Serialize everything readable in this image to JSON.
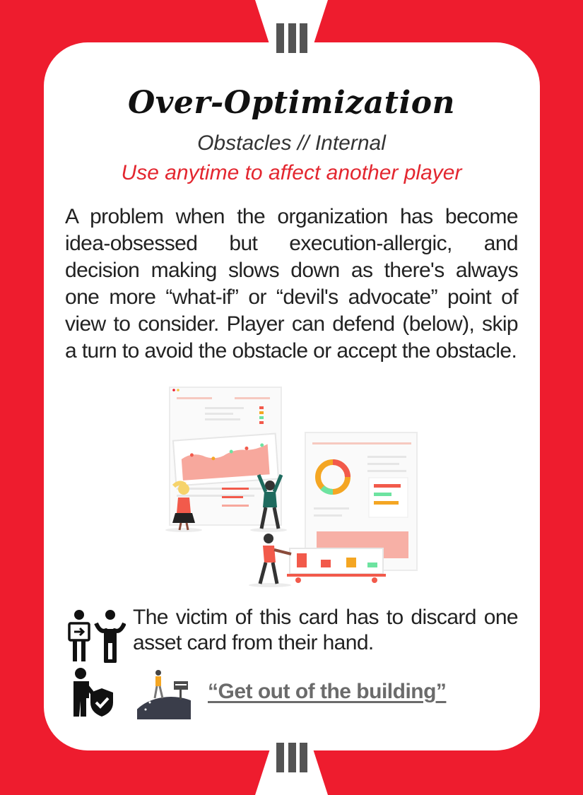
{
  "card": {
    "level": "III",
    "title": "Over-Optimization",
    "category": "Obstacles // Internal",
    "usage": "Use anytime to affect another player",
    "description": "A problem when the organization has become idea-obsessed but execution-allergic, and decision making slows down as there's always one more “what-if” or “devil's advocate” point of view to consider. Player can defend (below), skip a turn to avoid the obstacle or accept the obstacle.",
    "effect": {
      "icon": "player-to-player-icon",
      "text": "The victim of this card has to discard one asset card from their hand."
    },
    "defense": {
      "icon": "person-shield-icon",
      "link_text": "“Get out of the building”"
    }
  },
  "colors": {
    "background": "#ee1c2e",
    "card": "#ffffff",
    "accent": "#e3262f",
    "level_bars": "#545454"
  }
}
